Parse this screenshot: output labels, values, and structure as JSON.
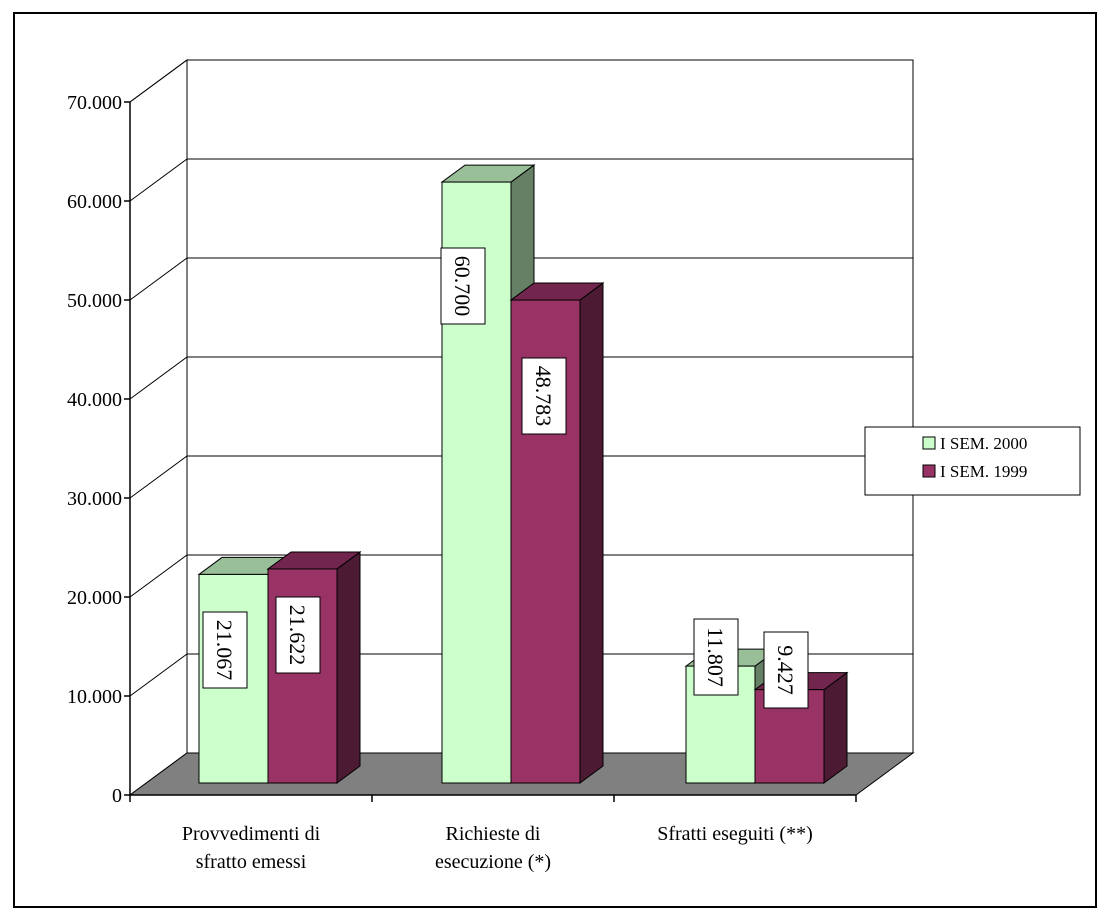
{
  "chart_data": {
    "type": "bar",
    "title": "",
    "xlabel": "",
    "ylabel": "",
    "categories": [
      "Provvedimenti di sfratto emessi",
      "Richieste di esecuzione (*)",
      "Sfratti eseguiti (**)"
    ],
    "category_label_lines": [
      [
        "Provvedimenti di",
        "sfratto emessi"
      ],
      [
        "Richieste di",
        "esecuzione (*)"
      ],
      [
        "Sfratti eseguiti (**)"
      ]
    ],
    "series": [
      {
        "name": "I SEM. 2000",
        "values": [
          21067,
          60700,
          11807
        ],
        "data_labels": [
          "21.067",
          "60.700",
          "11.807"
        ],
        "color": "#CCFFCC",
        "side_color": "#668066",
        "top_color": "#99BF99"
      },
      {
        "name": "I SEM. 1999",
        "values": [
          21622,
          48783,
          9427
        ],
        "data_labels": [
          "21.622",
          "48.783",
          "9.427"
        ],
        "color": "#993366",
        "side_color": "#4D1A33",
        "top_color": "#73264D"
      }
    ],
    "ylim": [
      0,
      70000
    ],
    "yticks": [
      0,
      10000,
      20000,
      30000,
      40000,
      50000,
      60000,
      70000
    ],
    "ytick_labels": [
      "0",
      "10.000",
      "20.000",
      "30.000",
      "40.000",
      "50.000",
      "60.000",
      "70.000"
    ],
    "grid": true,
    "legend_position": "right",
    "floor_color": "#808080"
  }
}
